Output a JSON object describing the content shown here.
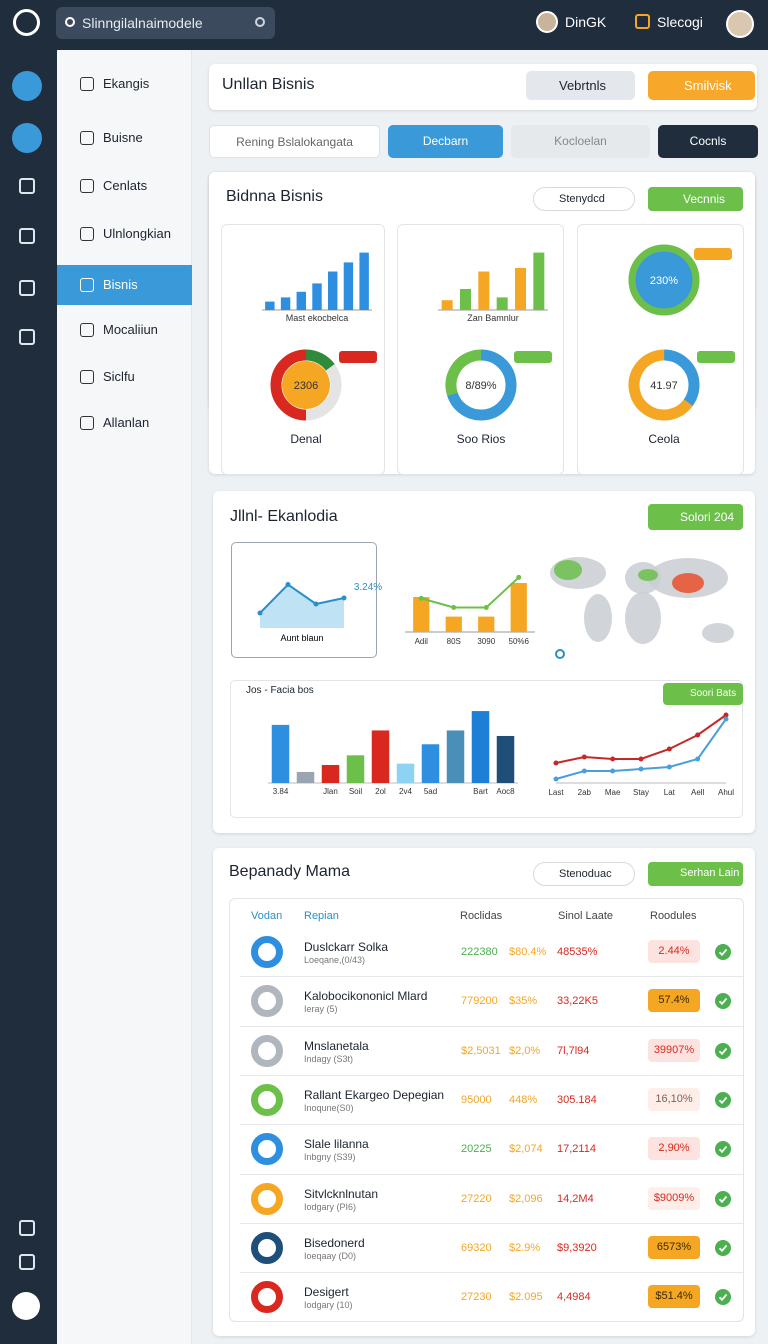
{
  "header": {
    "search": "Slinngilalnaimodele",
    "user": "DinGK",
    "action": "Slecogi"
  },
  "sidebar": {
    "items": [
      "Ekangis",
      "Buisne",
      "Cenlats",
      "Ulnlongkian",
      "Bisnis",
      "Mocaliiun",
      "Siclfu",
      "Allanlan"
    ],
    "active": 4
  },
  "topbar": {
    "title": "Unllan Bisnis",
    "select": "Vebrtnls",
    "button": "Smilvisk"
  },
  "tabs": [
    "Rening Bslalokangata",
    "Decbarn",
    "Kocloelan",
    "Cocnls"
  ],
  "overview": {
    "title": "Bidnna Bisnis",
    "select": "Stenydcd",
    "button": "Vecnnis",
    "bar_charts": [
      {
        "caption": "Mast ekocbelca",
        "values": [
          12,
          18,
          26,
          38,
          55,
          68,
          82
        ],
        "colors": [
          "#2e8fe0"
        ],
        "ylim": [
          0,
          100
        ]
      },
      {
        "caption": "Zan Bamnlur",
        "values": [
          14,
          30,
          55,
          18,
          60,
          82
        ],
        "colors": [
          "#f5a623",
          "#6cc04a"
        ],
        "ylim": [
          0,
          100
        ]
      }
    ],
    "ring": {
      "label": "230%"
    },
    "donuts": [
      {
        "name": "Denal",
        "center": "2306",
        "values": [
          15,
          35,
          50
        ],
        "colors": [
          "#2f8a3a",
          "#e4e4e4",
          "#d9281f"
        ],
        "inner": "#f5a623"
      },
      {
        "name": "Soo Rios",
        "center": "8/89%",
        "values": [
          70,
          30
        ],
        "colors": [
          "#3a9ad9",
          "#6cc04a"
        ],
        "inner": "#ffffff"
      },
      {
        "name": "Ceola",
        "center": "41.97",
        "values": [
          35,
          65
        ],
        "colors": [
          "#3a9ad9",
          "#f5a623"
        ],
        "inner": "#ffffff"
      }
    ]
  },
  "analytics": {
    "title": "Jllnl- Ekanlodia",
    "button": "Solori 204",
    "area": {
      "label": "3.24%",
      "caption": "Aunt blaun",
      "values": [
        20,
        58,
        32,
        40
      ],
      "ylim": [
        0,
        80
      ]
    },
    "combo": {
      "categories": [
        "Adil",
        "80S",
        "3090",
        "50%6"
      ],
      "bars": [
        50,
        22,
        22,
        70
      ],
      "line": [
        48,
        35,
        35,
        78
      ],
      "ylim": [
        0,
        100
      ]
    },
    "bars": {
      "title": "Jos - Facia bos",
      "button": "Soori Bats",
      "categories": [
        "3.84",
        null,
        "Jlan",
        "Soil",
        "2ol",
        "2v4",
        "5ad",
        null,
        "Bart",
        "Aoc8"
      ],
      "values": [
        210,
        40,
        65,
        100,
        190,
        70,
        140,
        190,
        260,
        170
      ],
      "colors": [
        "#2e8fe0",
        "#9aa5b1",
        "#d9281f",
        "#6cc04a",
        "#d9281f",
        "#8fd3f4",
        "#2e8fe0",
        "#4a8fb8",
        "#1e7fd6",
        "#1f4e79"
      ],
      "ylim": [
        0,
        300
      ]
    },
    "lines": {
      "categories": [
        "Last",
        "2ab",
        "Mae",
        "Stay",
        "Lat",
        "Aell",
        "Ahul"
      ],
      "series": [
        {
          "color": "#c62828",
          "values": [
            10,
            13,
            12,
            12,
            17,
            24,
            34
          ]
        },
        {
          "color": "#4a9fd8",
          "values": [
            2,
            6,
            6,
            7,
            8,
            12,
            32
          ]
        }
      ],
      "ylim": [
        0,
        40
      ]
    }
  },
  "table": {
    "title": "Bepanady Mama",
    "select": "Stenoduac",
    "button": "Serhan Lain",
    "headers": [
      "Vodan",
      "Repian",
      "Roclidas",
      "Sinol Laate",
      "Roodules"
    ],
    "rows": [
      {
        "name": "Duslckarr Solka",
        "sub": "Loeqane,(0/43)",
        "cells": [
          "222380",
          "$80.4%",
          "48535%"
        ],
        "badge": "2.44%",
        "icon": "#2e8fe0",
        "badge_bg": "#fde3df",
        "badge_fg": "#d9281f",
        "v1": "#4caf50"
      },
      {
        "name": "Kalobocikononicl Mlard",
        "sub": "Ieray (5)",
        "cells": [
          "779200",
          "$35%",
          "33,22K5"
        ],
        "badge": "57.4%",
        "icon": "#b0b6bd",
        "badge_bg": "#f5a623",
        "badge_fg": "#3a2a00",
        "v1": "#f5a623"
      },
      {
        "name": "Mnslanetala",
        "sub": "Indagy (S3t)",
        "cells": [
          "$2,5031",
          "$2,0%",
          "7l,7l94"
        ],
        "badge": "39907%",
        "icon": "#b0b6bd",
        "badge_bg": "#fde3df",
        "badge_fg": "#d9281f",
        "v1": "#f5a623"
      },
      {
        "name": "Rallant Ekargeo Depegian",
        "sub": "Inoqune(S0)",
        "cells": [
          "95000",
          "448%",
          "305.184"
        ],
        "badge": "16,10%",
        "icon": "#6cc04a",
        "badge_bg": "#fdeeea",
        "badge_fg": "#8a5a50",
        "v1": "#f5a623"
      },
      {
        "name": "Slale lilanna",
        "sub": "Inbgny (S39)",
        "cells": [
          "20225",
          "$2,074",
          "17,2114"
        ],
        "badge": "2,90%",
        "icon": "#2e8fe0",
        "badge_bg": "#fde3df",
        "badge_fg": "#d9281f",
        "v1": "#4caf50"
      },
      {
        "name": "Sitvlcknlnutan",
        "sub": "Iodgary (PI6)",
        "cells": [
          "27220",
          "$2,096",
          "14,2M4"
        ],
        "badge": "$9009%",
        "icon": "#f5a623",
        "badge_bg": "#fdeeea",
        "badge_fg": "#d9281f",
        "v1": "#f5a623"
      },
      {
        "name": "Bisedonerd",
        "sub": "Ioeqaay (D0)",
        "cells": [
          "69320",
          "$2.9%",
          "$9,3920"
        ],
        "badge": "6573%",
        "icon": "#1f4e79",
        "badge_bg": "#f5a623",
        "badge_fg": "#3a2a00",
        "v1": "#f5a623"
      },
      {
        "name": "Desigert",
        "sub": "Iodgary (10)",
        "cells": [
          "27230",
          "$2.095",
          "4,4984"
        ],
        "badge": "$51.4%",
        "icon": "#d9281f",
        "badge_bg": "#f5a623",
        "badge_fg": "#3a2a00",
        "v1": "#f5a623"
      }
    ]
  }
}
